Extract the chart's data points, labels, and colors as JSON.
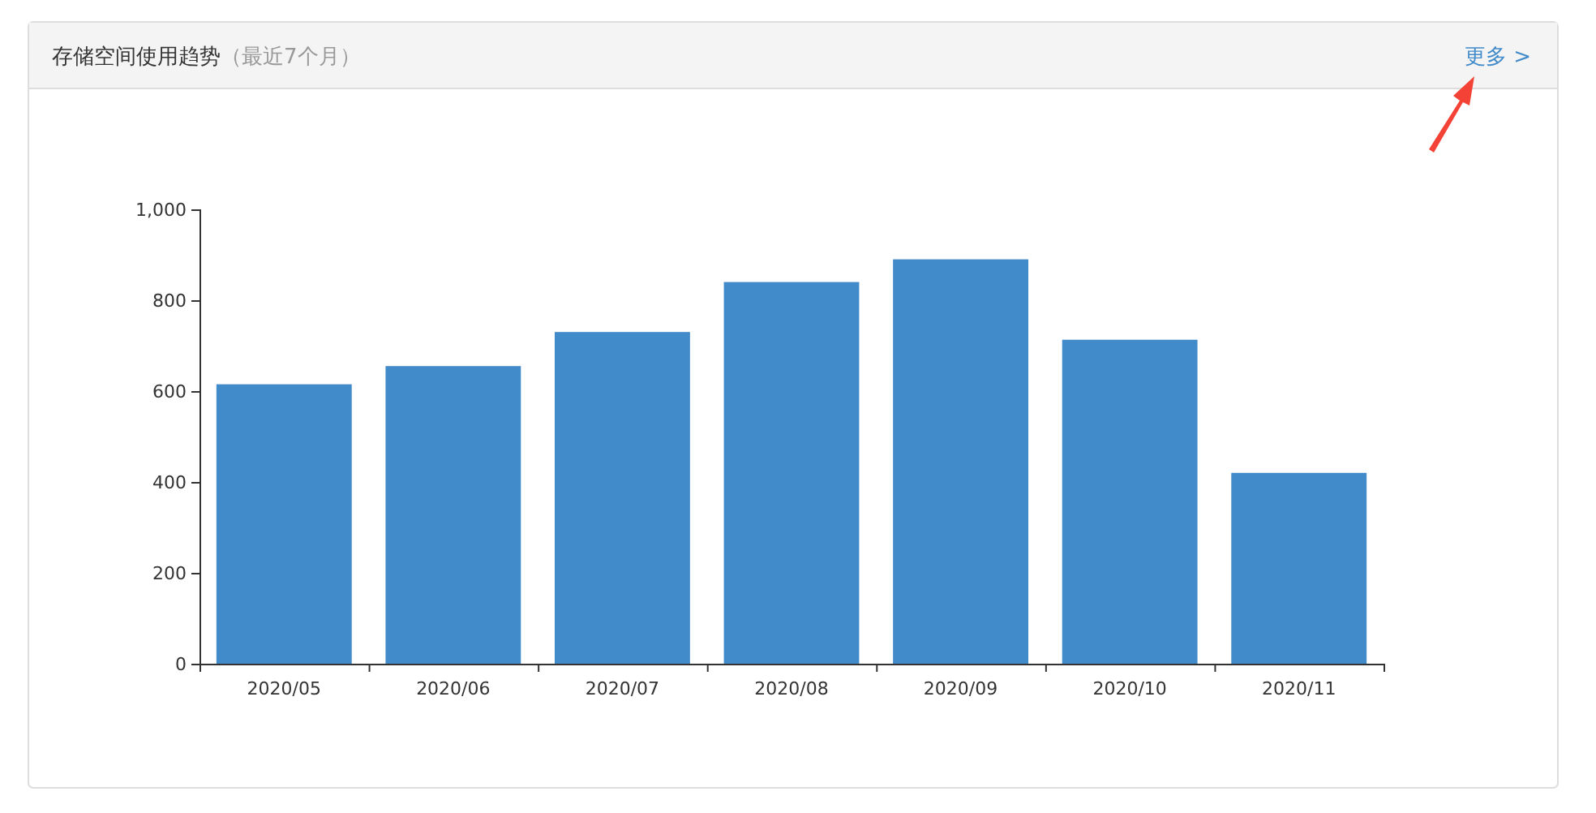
{
  "chart_data": {
    "type": "bar",
    "title": "存储空间使用趋势",
    "subtitle": "（最近7个月）",
    "annotations": [
      "更多 >"
    ],
    "categories": [
      "2020/05",
      "2020/06",
      "2020/07",
      "2020/08",
      "2020/09",
      "2020/10",
      "2020/11"
    ],
    "values": [
      615,
      655,
      730,
      840,
      890,
      713,
      420
    ],
    "color": "#428bca",
    "ylim": [
      0,
      1000
    ],
    "yticks": [
      0,
      200,
      400,
      600,
      800,
      {
        "value": 1000,
        "label": "1,000"
      }
    ]
  }
}
